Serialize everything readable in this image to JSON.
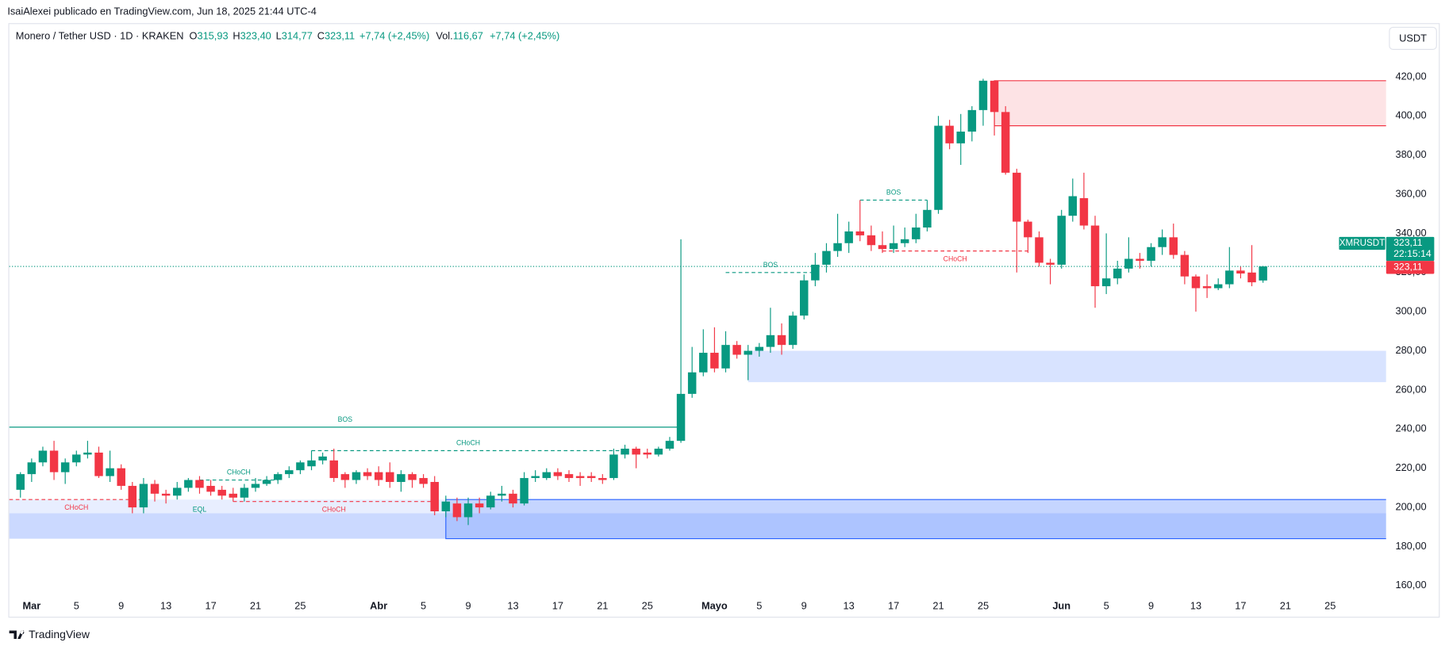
{
  "header": {
    "byline": "IsaiAlexei publicado en TradingView.com, Jun 18, 2025 21:44 UTC-4",
    "symbol": "Monero / Tether USD · 1D · KRAKEN",
    "open_key": "O",
    "open": "315,93",
    "high_key": "H",
    "high": "323,40",
    "low_key": "L",
    "low": "314,77",
    "close_key": "C",
    "close": "323,11",
    "change": "+7,74 (+2,45%)",
    "volume_key": "Vol.",
    "volume": "116,67",
    "volume_change": "+7,74 (+2,45%)",
    "currency": "USDT",
    "brand": "TradingView"
  },
  "chart_data": {
    "type": "candlestick",
    "up_color": "#089981",
    "down_color": "#f23645",
    "grid": false,
    "x": [
      "2025-02-28",
      "2025-03-01",
      "2025-03-02",
      "2025-03-03",
      "2025-03-04",
      "2025-03-05",
      "2025-03-06",
      "2025-03-07",
      "2025-03-08",
      "2025-03-09",
      "2025-03-10",
      "2025-03-11",
      "2025-03-12",
      "2025-03-13",
      "2025-03-14",
      "2025-03-15",
      "2025-03-16",
      "2025-03-17",
      "2025-03-18",
      "2025-03-19",
      "2025-03-20",
      "2025-03-21",
      "2025-03-22",
      "2025-03-23",
      "2025-03-24",
      "2025-03-25",
      "2025-03-26",
      "2025-03-27",
      "2025-03-28",
      "2025-03-29",
      "2025-03-30",
      "2025-03-31",
      "2025-04-01",
      "2025-04-02",
      "2025-04-03",
      "2025-04-04",
      "2025-04-05",
      "2025-04-06",
      "2025-04-07",
      "2025-04-08",
      "2025-04-09",
      "2025-04-10",
      "2025-04-11",
      "2025-04-12",
      "2025-04-13",
      "2025-04-14",
      "2025-04-15",
      "2025-04-16",
      "2025-04-17",
      "2025-04-18",
      "2025-04-19",
      "2025-04-20",
      "2025-04-21",
      "2025-04-22",
      "2025-04-23",
      "2025-04-24",
      "2025-04-25",
      "2025-04-26",
      "2025-04-27",
      "2025-04-28",
      "2025-04-29",
      "2025-04-30",
      "2025-05-01",
      "2025-05-02",
      "2025-05-03",
      "2025-05-04",
      "2025-05-05",
      "2025-05-06",
      "2025-05-07",
      "2025-05-08",
      "2025-05-09",
      "2025-05-10",
      "2025-05-11",
      "2025-05-12",
      "2025-05-13",
      "2025-05-14",
      "2025-05-15",
      "2025-05-16",
      "2025-05-17",
      "2025-05-18",
      "2025-05-19",
      "2025-05-20",
      "2025-05-21",
      "2025-05-22",
      "2025-05-23",
      "2025-05-24",
      "2025-05-25",
      "2025-05-26",
      "2025-05-27",
      "2025-05-28",
      "2025-05-29",
      "2025-05-30",
      "2025-05-31",
      "2025-06-01",
      "2025-06-02",
      "2025-06-03",
      "2025-06-04",
      "2025-06-05",
      "2025-06-06",
      "2025-06-07",
      "2025-06-08",
      "2025-06-09",
      "2025-06-10",
      "2025-06-11",
      "2025-06-12",
      "2025-06-13",
      "2025-06-14",
      "2025-06-15",
      "2025-06-16",
      "2025-06-17",
      "2025-06-18",
      "2025-06-19"
    ],
    "open": [
      209,
      217,
      223,
      229,
      218,
      223,
      227,
      228,
      216,
      220,
      211,
      200,
      212,
      207,
      206,
      210,
      214,
      211,
      209,
      207,
      205,
      210,
      212,
      214,
      217,
      219,
      221,
      224,
      224,
      217,
      214,
      218,
      218,
      218,
      213,
      217,
      215,
      213,
      198,
      202,
      195,
      202,
      200,
      206,
      207,
      202,
      215,
      215,
      218,
      217,
      216,
      216,
      215,
      215,
      227,
      230,
      228,
      227,
      230,
      234,
      258,
      269,
      279,
      271,
      283,
      278,
      280,
      282,
      288,
      283,
      298,
      316,
      324,
      331,
      335,
      341,
      339,
      334,
      332,
      335,
      337,
      343,
      352,
      395,
      386,
      392,
      403,
      418,
      402,
      371,
      346,
      338,
      325,
      324,
      349,
      358,
      344,
      313,
      317,
      322,
      327,
      326,
      333,
      338,
      329,
      318,
      313,
      312,
      314,
      321,
      320,
      315.93
    ],
    "high": [
      218,
      225,
      231,
      234,
      225,
      229,
      234,
      231,
      229,
      222,
      213,
      215,
      214,
      209,
      213,
      215,
      216,
      214,
      211,
      210,
      212,
      215,
      216,
      218,
      221,
      224,
      229,
      228,
      230,
      218,
      219,
      220,
      221,
      223,
      219,
      218,
      217,
      216,
      206,
      205,
      205,
      205,
      208,
      211,
      209,
      218,
      219,
      220,
      220,
      219,
      218,
      218,
      217,
      230,
      232,
      231,
      230,
      231,
      236,
      337,
      282,
      291,
      292,
      290,
      285,
      283,
      284,
      302,
      294,
      300,
      319,
      330,
      335,
      350,
      346,
      357,
      344,
      341,
      344,
      343,
      350,
      357,
      400,
      398,
      401,
      405,
      419,
      418,
      405,
      373,
      347,
      341,
      327,
      352,
      368,
      371,
      349,
      340,
      326,
      338,
      330,
      335,
      342,
      345,
      331,
      319,
      319,
      317,
      333,
      323,
      334,
      323.4
    ],
    "low": [
      205,
      213,
      221,
      214,
      212,
      221,
      225,
      215,
      213,
      209,
      197,
      197,
      203,
      202,
      204,
      208,
      207,
      206,
      204,
      203,
      203,
      208,
      211,
      212,
      215,
      217,
      219,
      222,
      213,
      210,
      212,
      214,
      211,
      210,
      208,
      210,
      210,
      196,
      195,
      193,
      191,
      197,
      199,
      203,
      200,
      201,
      213,
      214,
      214,
      213,
      211,
      213,
      212,
      214,
      225,
      220,
      225,
      226,
      229,
      233,
      256,
      267,
      269,
      269,
      276,
      265,
      277,
      279,
      278,
      281,
      296,
      313,
      320,
      328,
      330,
      336,
      331,
      330,
      330,
      333,
      335,
      341,
      350,
      383,
      375,
      387,
      395,
      390,
      370,
      320,
      330,
      323,
      314,
      322,
      346,
      342,
      302,
      309,
      314,
      320,
      322,
      323,
      329,
      327,
      314,
      300,
      307,
      311,
      312,
      317,
      313,
      314.77
    ],
    "close": [
      217,
      223,
      229,
      218,
      223,
      227,
      228,
      216,
      220,
      211,
      200,
      212,
      207,
      206,
      210,
      214,
      210,
      208,
      206,
      205,
      210,
      212,
      214,
      217,
      219,
      223,
      224,
      226,
      215,
      214,
      218,
      216,
      214,
      213,
      217,
      214,
      212,
      198,
      203,
      195,
      202,
      200,
      206,
      207,
      202,
      215,
      216,
      218,
      216,
      215,
      215,
      215,
      214,
      227,
      230,
      227,
      227,
      230,
      234,
      258,
      269,
      279,
      271,
      283,
      278,
      280,
      282,
      288,
      283,
      298,
      316,
      324,
      331,
      335,
      341,
      339,
      334,
      332,
      335,
      337,
      343,
      352,
      395,
      386,
      392,
      403,
      418,
      402,
      371,
      346,
      338,
      325,
      324,
      349,
      359,
      344,
      313,
      317,
      322,
      327,
      326,
      333,
      338,
      329,
      318,
      312,
      312,
      314,
      321,
      319.5,
      315,
      323.11
    ],
    "xlim": [
      "2025-02-27",
      "2025-06-30"
    ],
    "xticks": [
      {
        "value": "2025-03-01",
        "label": "Mar"
      },
      {
        "value": "2025-03-05",
        "label": "5"
      },
      {
        "value": "2025-03-09",
        "label": "9"
      },
      {
        "value": "2025-03-13",
        "label": "13"
      },
      {
        "value": "2025-03-17",
        "label": "17"
      },
      {
        "value": "2025-03-21",
        "label": "21"
      },
      {
        "value": "2025-03-25",
        "label": "25"
      },
      {
        "value": "2025-04-01",
        "label": "Abr"
      },
      {
        "value": "2025-04-05",
        "label": "5"
      },
      {
        "value": "2025-04-09",
        "label": "9"
      },
      {
        "value": "2025-04-13",
        "label": "13"
      },
      {
        "value": "2025-04-17",
        "label": "17"
      },
      {
        "value": "2025-04-21",
        "label": "21"
      },
      {
        "value": "2025-04-25",
        "label": "25"
      },
      {
        "value": "2025-05-01",
        "label": "Mayo"
      },
      {
        "value": "2025-05-05",
        "label": "5"
      },
      {
        "value": "2025-05-09",
        "label": "9"
      },
      {
        "value": "2025-05-13",
        "label": "13"
      },
      {
        "value": "2025-05-17",
        "label": "17"
      },
      {
        "value": "2025-05-21",
        "label": "21"
      },
      {
        "value": "2025-05-25",
        "label": "25"
      },
      {
        "value": "2025-06-01",
        "label": "Jun"
      },
      {
        "value": "2025-06-05",
        "label": "5"
      },
      {
        "value": "2025-06-09",
        "label": "9"
      },
      {
        "value": "2025-06-13",
        "label": "13"
      },
      {
        "value": "2025-06-17",
        "label": "17"
      },
      {
        "value": "2025-06-21",
        "label": "21"
      },
      {
        "value": "2025-06-25",
        "label": "25"
      }
    ],
    "ylim": [
      155,
      446
    ],
    "yticks": [
      {
        "value": 160,
        "label": "160,00"
      },
      {
        "value": 180,
        "label": "180,00"
      },
      {
        "value": 200,
        "label": "200,00"
      },
      {
        "value": 220,
        "label": "220,00"
      },
      {
        "value": 240,
        "label": "240,00"
      },
      {
        "value": 260,
        "label": "260,00"
      },
      {
        "value": 280,
        "label": "280,00"
      },
      {
        "value": 300,
        "label": "300,00"
      },
      {
        "value": 320,
        "label": "320,00"
      },
      {
        "value": 340,
        "label": "340,00"
      },
      {
        "value": 360,
        "label": "360,00"
      },
      {
        "value": 380,
        "label": "380,00"
      },
      {
        "value": 400,
        "label": "400,00"
      },
      {
        "value": 420,
        "label": "420,00"
      }
    ],
    "zones": [
      {
        "top": 204,
        "bottom": 184,
        "start": "2025-02-27",
        "fill": "#2962ff1c"
      },
      {
        "top": 197,
        "bottom": 184,
        "start": "2025-02-27",
        "fill": "#2962ff26"
      },
      {
        "top": 204,
        "bottom": 184,
        "start": "2025-04-07",
        "fill": "#2962ff2e",
        "stroke": "#2962ff"
      },
      {
        "top": 280,
        "bottom": 264,
        "start": "2025-05-04",
        "fill": "#2962ff2e"
      },
      {
        "top": 418,
        "bottom": 395,
        "start": "2025-05-26",
        "fill": "#f2364524",
        "stroke": "#f23645"
      }
    ],
    "annotations": [
      {
        "text": "BOS",
        "level": 241,
        "start": "2025-02-27",
        "end": "2025-04-28",
        "color": "#089981",
        "dashed": false,
        "side": "above"
      },
      {
        "text": "CHoCH",
        "level": 229,
        "start": "2025-03-26",
        "end": "2025-04-23",
        "color": "#089981",
        "dashed": true,
        "side": "above"
      },
      {
        "text": "CHoCH",
        "level": 214,
        "start": "2025-03-16",
        "end": "2025-03-23",
        "color": "#089981",
        "dashed": true,
        "side": "above"
      },
      {
        "text": "CHoCH",
        "level": 204,
        "start": "2025-02-27",
        "end": "2025-03-11",
        "color": "#f23645",
        "dashed": true,
        "side": "below"
      },
      {
        "text": "CHoCH",
        "level": 203,
        "start": "2025-03-19",
        "end": "2025-04-06",
        "color": "#f23645",
        "dashed": true,
        "side": "below"
      },
      {
        "text": "EQL",
        "level": 203,
        "start": "2025-03-16",
        "end": "2025-03-16",
        "color": "#089981",
        "dashed": true,
        "side": "below"
      },
      {
        "text": "BOS",
        "level": 320,
        "start": "2025-05-02",
        "end": "2025-05-10",
        "color": "#089981",
        "dashed": true,
        "side": "above"
      },
      {
        "text": "BOS",
        "level": 357,
        "start": "2025-05-14",
        "end": "2025-05-20",
        "color": "#089981",
        "dashed": true,
        "side": "above"
      },
      {
        "text": "CHoCH",
        "level": 331,
        "start": "2025-05-16",
        "end": "2025-05-29",
        "color": "#f23645",
        "dashed": true,
        "side": "below"
      }
    ],
    "price_line": {
      "value": 323.11,
      "label": "323,11",
      "symbol": "XMRUSDT",
      "symbol_value_label": "323,11",
      "countdown": "22:15:14",
      "color": "#089981",
      "label_color": "#f23645"
    }
  }
}
